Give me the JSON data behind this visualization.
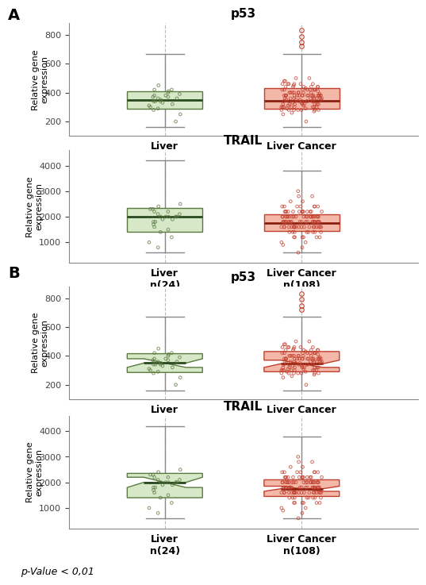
{
  "panel_A_p53": {
    "title": "p53",
    "ylabel": "Relative gene\nexpression",
    "labels": [
      "Liver\nn(24)",
      "Liver Cancer\nn(108)"
    ],
    "colors": [
      "#d6e8c8",
      "#f4b8a8"
    ],
    "edge_colors": [
      "#5a7a40",
      "#c04030"
    ],
    "median_colors": [
      "#2a4a20",
      "#8b2010"
    ],
    "box_stats": [
      {
        "q1": 290,
        "median": 350,
        "q3": 410,
        "whisker_lo": 160,
        "whisker_hi": 670,
        "outliers": []
      },
      {
        "q1": 290,
        "median": 345,
        "q3": 430,
        "whisker_lo": 160,
        "whisker_hi": 670,
        "outliers": [
          720,
          750,
          790,
          830
        ]
      }
    ],
    "ylim": [
      100,
      880
    ],
    "yticks": [
      200,
      400,
      600,
      800
    ],
    "notch": false,
    "jitter_liver": [
      350,
      390,
      320,
      370,
      340,
      280,
      300,
      360,
      400,
      420,
      310,
      250,
      200,
      340,
      380,
      420,
      450,
      380,
      330,
      290,
      410,
      370,
      360,
      340
    ],
    "jitter_cancer": [
      350,
      380,
      400,
      320,
      290,
      250,
      200,
      310,
      340,
      360,
      380,
      420,
      450,
      480,
      500,
      380,
      350,
      330,
      300,
      280,
      260,
      380,
      400,
      420,
      440,
      460,
      350,
      370,
      390,
      410,
      430,
      380,
      360,
      340,
      320,
      300,
      380,
      400,
      420,
      350,
      330,
      310,
      290,
      270,
      380,
      360,
      340,
      320,
      300,
      280,
      420,
      440,
      460,
      480,
      500,
      380,
      360,
      340,
      320,
      300,
      280,
      380,
      400,
      420,
      440,
      460,
      380,
      360,
      340,
      320,
      300,
      280,
      380,
      400,
      420,
      440,
      460,
      380,
      360,
      340,
      320,
      300,
      280,
      380,
      400,
      420,
      440,
      460,
      380,
      360,
      340,
      320,
      300,
      280,
      380,
      400,
      420,
      440,
      460,
      380,
      360,
      340,
      320,
      300,
      280,
      380,
      400
    ]
  },
  "panel_A_TRAIL": {
    "title": "TRAIL",
    "ylabel": "Relative gene\nexpression",
    "labels": [
      "Liver\nn(24)",
      "Liver Cancer\nn(108)"
    ],
    "colors": [
      "#d6e8c8",
      "#f4b8a8"
    ],
    "edge_colors": [
      "#5a7a40",
      "#c04030"
    ],
    "median_colors": [
      "#2a4a20",
      "#8b2010"
    ],
    "box_stats": [
      {
        "q1": 1400,
        "median": 2000,
        "q3": 2350,
        "whisker_lo": 600,
        "whisker_hi": 4200,
        "outliers": []
      },
      {
        "q1": 1450,
        "median": 1750,
        "q3": 2100,
        "whisker_lo": 600,
        "whisker_hi": 3800,
        "outliers": []
      }
    ],
    "ylim": [
      200,
      4600
    ],
    "yticks": [
      1000,
      2000,
      3000,
      4000
    ],
    "notch": false,
    "jitter_liver": [
      2000,
      2100,
      1900,
      2200,
      1800,
      1700,
      2300,
      2000,
      1500,
      1200,
      1000,
      2500,
      2000,
      1800,
      2200,
      1600,
      2400,
      2000,
      1900,
      2100,
      2000,
      2300,
      800,
      1400
    ],
    "jitter_cancer": [
      1800,
      1600,
      1400,
      1200,
      1000,
      900,
      2000,
      2200,
      1800,
      1600,
      1400,
      2400,
      2000,
      1800,
      1600,
      2200,
      1800,
      1600,
      2000,
      1800,
      1600,
      1400,
      1200,
      2200,
      2000,
      1800,
      1600,
      1400,
      1200,
      2000,
      1800,
      1600,
      2200,
      2000,
      1800,
      1600,
      2400,
      2000,
      1800,
      1600,
      1400,
      1200,
      2000,
      1800,
      1600,
      2200,
      2000,
      1800,
      1600,
      2400,
      2200,
      2000,
      1800,
      1600,
      2000,
      1800,
      1600,
      1400,
      1200,
      1800,
      1600,
      1400,
      2200,
      2000,
      1800,
      2400,
      2200,
      2000,
      1800,
      1600,
      2000,
      1800,
      2600,
      2800,
      2400,
      2200,
      2000,
      1800,
      1600,
      2200,
      2000,
      1800,
      3000,
      2800,
      2600,
      2400,
      2200,
      2000,
      1800,
      1600,
      2200,
      2000,
      1800,
      1600,
      2400,
      2200,
      2000,
      1800,
      1600,
      2000,
      1800,
      1600,
      1400,
      1200,
      1000,
      800,
      600
    ]
  },
  "panel_B_p53": {
    "title": "p53",
    "ylabel": "Relative gene\nexpression",
    "labels": [
      "Liver\nn(24)",
      "Liver Cancer\nn(108)"
    ],
    "notch": true,
    "box_stats": [
      {
        "q1": 285,
        "median": 350,
        "q3": 415,
        "whisker_lo": 160,
        "whisker_hi": 670,
        "outliers": [],
        "notch_lo": 320,
        "notch_hi": 380
      },
      {
        "q1": 290,
        "median": 345,
        "q3": 430,
        "whisker_lo": 160,
        "whisker_hi": 670,
        "outliers": [
          720,
          750,
          790,
          830
        ],
        "notch_lo": 320,
        "notch_hi": 370
      }
    ],
    "colors": [
      "#d6e8c8",
      "#f4b8a8"
    ],
    "edge_colors": [
      "#5a7a40",
      "#c04030"
    ],
    "median_colors": [
      "#2a4a20",
      "#8b2010"
    ],
    "ylim": [
      100,
      880
    ],
    "yticks": [
      200,
      400,
      600,
      800
    ],
    "jitter_liver": [
      350,
      390,
      320,
      370,
      340,
      280,
      300,
      360,
      400,
      420,
      310,
      250,
      200,
      340,
      380,
      420,
      450,
      380,
      330,
      290,
      410,
      370,
      360,
      340
    ],
    "jitter_cancer": [
      350,
      380,
      400,
      320,
      290,
      250,
      200,
      310,
      340,
      360,
      380,
      420,
      450,
      480,
      500,
      380,
      350,
      330,
      300,
      280,
      260,
      380,
      400,
      420,
      440,
      460,
      350,
      370,
      390,
      410,
      430,
      380,
      360,
      340,
      320,
      300,
      380,
      400,
      420,
      350,
      330,
      310,
      290,
      270,
      380,
      360,
      340,
      320,
      300,
      280,
      420,
      440,
      460,
      480,
      500,
      380,
      360,
      340,
      320,
      300,
      280,
      380,
      400,
      420,
      440,
      460,
      380,
      360,
      340,
      320,
      300,
      280,
      380,
      400,
      420,
      440,
      460,
      380,
      360,
      340,
      320,
      300,
      280,
      380,
      400,
      420,
      440,
      460,
      380,
      360,
      340,
      320,
      300,
      280,
      380,
      400,
      420,
      440,
      460,
      380,
      360,
      340,
      320,
      300,
      280,
      380,
      400
    ]
  },
  "panel_B_TRAIL": {
    "title": "TRAIL",
    "ylabel": "Relative gene\nexpression",
    "labels": [
      "Liver\nn(24)",
      "Liver Cancer\nn(108)"
    ],
    "notch": true,
    "box_stats": [
      {
        "q1": 1400,
        "median": 2000,
        "q3": 2350,
        "whisker_lo": 600,
        "whisker_hi": 4200,
        "outliers": [],
        "notch_lo": 1800,
        "notch_hi": 2200
      },
      {
        "q1": 1450,
        "median": 1750,
        "q3": 2100,
        "whisker_lo": 600,
        "whisker_hi": 3800,
        "outliers": [],
        "notch_lo": 1650,
        "notch_hi": 1850
      }
    ],
    "colors": [
      "#d6e8c8",
      "#f4b8a8"
    ],
    "edge_colors": [
      "#5a7a40",
      "#c04030"
    ],
    "median_colors": [
      "#2a4a20",
      "#8b2010"
    ],
    "ylim": [
      200,
      4600
    ],
    "yticks": [
      1000,
      2000,
      3000,
      4000
    ],
    "jitter_liver": [
      2000,
      2100,
      1900,
      2200,
      1800,
      1700,
      2300,
      2000,
      1500,
      1200,
      1000,
      2500,
      2000,
      1800,
      2200,
      1600,
      2400,
      2000,
      1900,
      2100,
      2000,
      2300,
      800,
      1400
    ],
    "jitter_cancer": [
      1800,
      1600,
      1400,
      1200,
      1000,
      900,
      2000,
      2200,
      1800,
      1600,
      1400,
      2400,
      2000,
      1800,
      1600,
      2200,
      1800,
      1600,
      2000,
      1800,
      1600,
      1400,
      1200,
      2200,
      2000,
      1800,
      1600,
      1400,
      1200,
      2000,
      1800,
      1600,
      2200,
      2000,
      1800,
      1600,
      2400,
      2000,
      1800,
      1600,
      1400,
      1200,
      2000,
      1800,
      1600,
      2200,
      2000,
      1800,
      1600,
      2400,
      2200,
      2000,
      1800,
      1600,
      2000,
      1800,
      1600,
      1400,
      1200,
      1800,
      1600,
      1400,
      2200,
      2000,
      1800,
      2400,
      2200,
      2000,
      1800,
      1600,
      2000,
      1800,
      2600,
      2800,
      2400,
      2200,
      2000,
      1800,
      1600,
      2200,
      2000,
      1800,
      3000,
      2800,
      2600,
      2400,
      2200,
      2000,
      1800,
      1600,
      2200,
      2000,
      1800,
      1600,
      2400,
      2200,
      2000,
      1800,
      1600,
      2000,
      1800,
      1600,
      1400,
      1200,
      1000,
      800,
      600
    ]
  },
  "footer_text": "p-Value < 0,01",
  "bg_color": "#ffffff"
}
